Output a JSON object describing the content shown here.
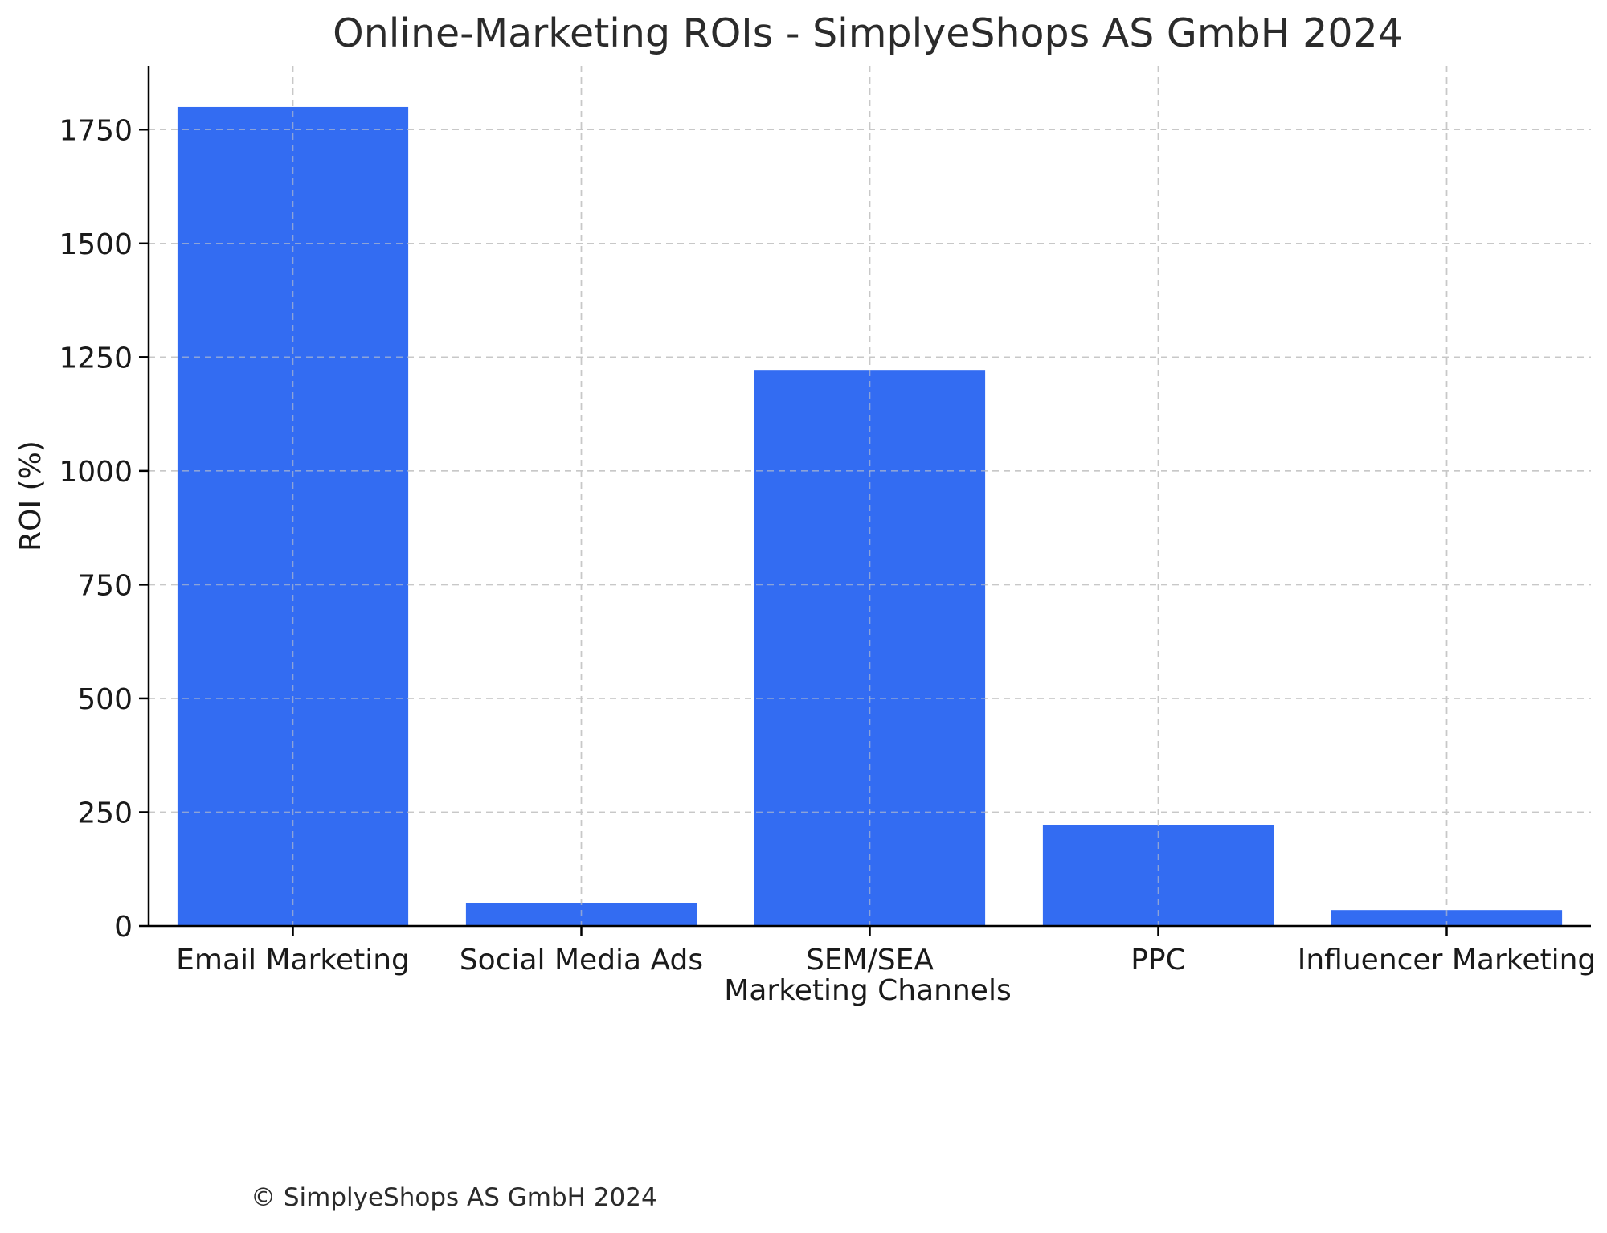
{
  "chart_data": {
    "type": "bar",
    "title": "Online-Marketing ROIs - SimplyeShops AS GmbH 2024",
    "xlabel": "Marketing Channels",
    "ylabel": "ROI (%)",
    "categories": [
      "Email Marketing",
      "Social Media Ads",
      "SEM/SEA",
      "PPC",
      "Influencer Marketing"
    ],
    "values": [
      1800,
      50,
      1222,
      222,
      35
    ],
    "ylim": [
      0,
      1890
    ],
    "yticks": [
      0,
      250,
      500,
      750,
      1000,
      1250,
      1500,
      1750
    ],
    "grid": true,
    "bar_color": "#336cf2"
  },
  "footer": {
    "copyright": "© SimplyeShops AS GmbH 2024"
  }
}
